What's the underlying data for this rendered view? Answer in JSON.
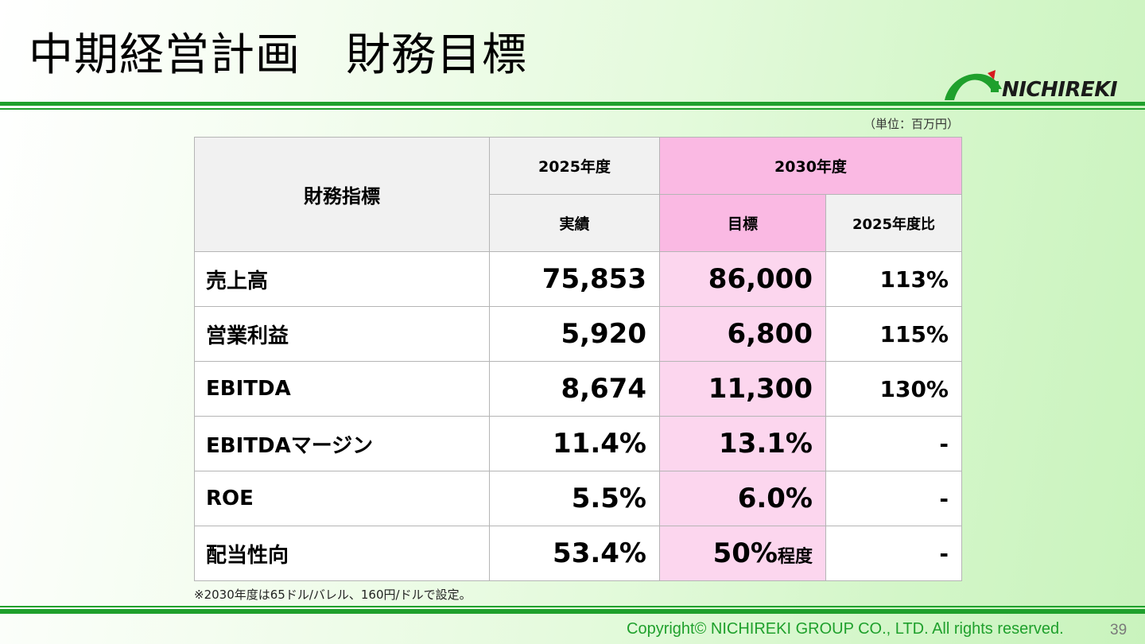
{
  "slide": {
    "title": "中期経営計画　財務目標",
    "unit_note": "（単位：百万円）",
    "footnote": "※2030年度は65ドル/バレル、160円/ドルで設定。",
    "copyright": "Copyright© NICHIREKI GROUP CO., LTD. All rights reserved.",
    "page_number": "39"
  },
  "logo": {
    "text": "NICHIREKI",
    "colors": {
      "arc": "#1fa02c",
      "accent": "#d7191f"
    }
  },
  "colors": {
    "accent_green": "#1fa02c",
    "header_pink": "#fab9e3",
    "column_pink": "#fcd6ee",
    "header_gray": "#f1f1f1"
  },
  "table": {
    "header": {
      "metric_label": "財務指標",
      "fy2025": "2025年度",
      "fy2030": "2030年度",
      "actual": "実績",
      "target": "目標",
      "ratio": "2025年度比"
    },
    "rows": [
      {
        "metric": "売上高",
        "actual_2025": "75,853",
        "target_2030": "86,000",
        "target_suffix": "",
        "ratio": "113%"
      },
      {
        "metric": "営業利益",
        "actual_2025": "5,920",
        "target_2030": "6,800",
        "target_suffix": "",
        "ratio": "115%"
      },
      {
        "metric": "EBITDA",
        "actual_2025": "8,674",
        "target_2030": "11,300",
        "target_suffix": "",
        "ratio": "130%"
      },
      {
        "metric": "EBITDAマージン",
        "actual_2025": "11.4%",
        "target_2030": "13.1%",
        "target_suffix": "",
        "ratio": "-"
      },
      {
        "metric": "ROE",
        "actual_2025": "5.5%",
        "target_2030": "6.0%",
        "target_suffix": "",
        "ratio": "-"
      },
      {
        "metric": "配当性向",
        "actual_2025": "53.4%",
        "target_2030": "50%",
        "target_suffix": "程度",
        "ratio": "-"
      }
    ]
  }
}
